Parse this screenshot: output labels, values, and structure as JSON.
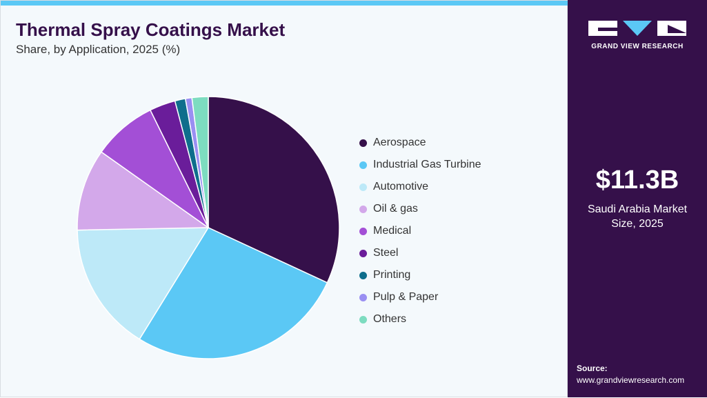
{
  "header": {
    "title": "Thermal Spray Coatings Market",
    "subtitle": "Share, by Application, 2025 (%)"
  },
  "sidebar": {
    "logo_text": "GRAND VIEW RESEARCH",
    "value": "$11.3B",
    "value_desc_1": "Saudi Arabia Market",
    "value_desc_2": "Size, 2025",
    "source_label": "Source:",
    "source_url": "www.grandviewresearch.com"
  },
  "chart_data": {
    "type": "pie",
    "title": "Thermal Spray Coatings Market",
    "subtitle": "Share, by Application, 2025 (%)",
    "legend_position": "right",
    "categories": [
      "Aerospace",
      "Industrial Gas Turbine",
      "Automotive",
      "Oil & gas",
      "Medical",
      "Steel",
      "Printing",
      "Pulp & Paper",
      "Others"
    ],
    "values": [
      31.9,
      26.9,
      15.9,
      10.1,
      7.9,
      3.2,
      1.3,
      0.8,
      2.0
    ],
    "colors": [
      "#35104a",
      "#5bc8f5",
      "#bde9f8",
      "#d3a8ea",
      "#a34fd6",
      "#6a1d9a",
      "#0f6e8c",
      "#9a8ff2",
      "#7ddcc0"
    ]
  }
}
